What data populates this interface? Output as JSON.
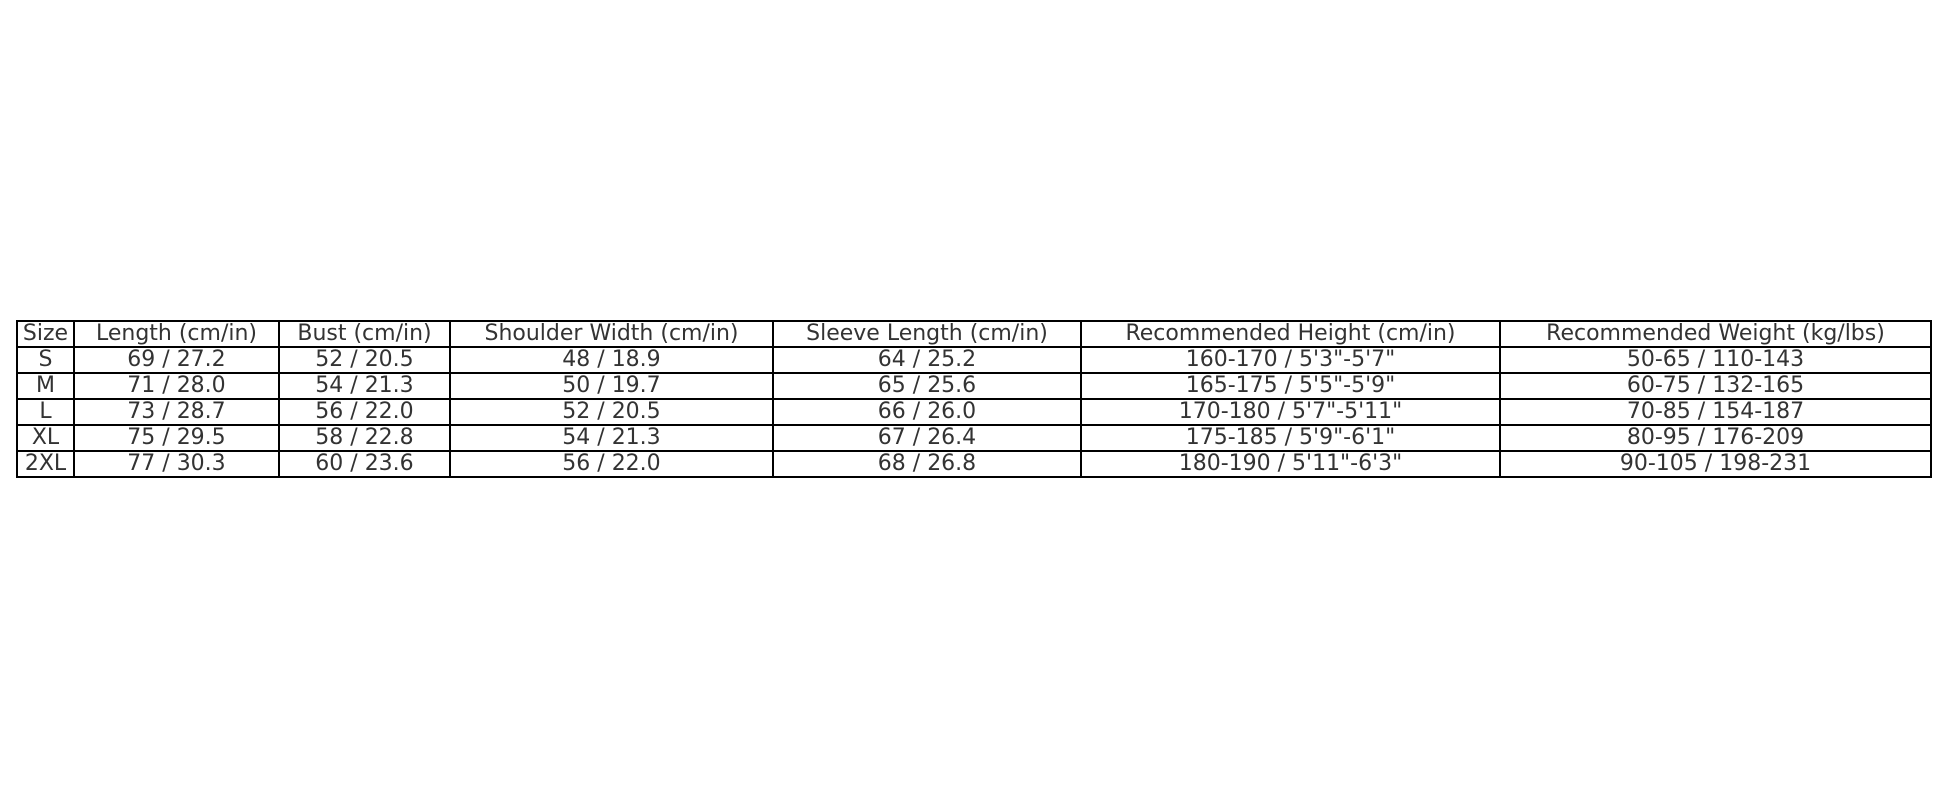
{
  "table": {
    "header": [
      "Size",
      "Length (cm/in)",
      "Bust (cm/in)",
      "Shoulder Width (cm/in)",
      "Sleeve Length (cm/in)",
      "Recommended Height (cm/in)",
      "Recommended Weight (kg/lbs)"
    ],
    "rows": [
      [
        "S",
        "69 / 27.2",
        "52 / 20.5",
        "48 / 18.9",
        "64 / 25.2",
        "160-170 / 5'3\"-5'7\"",
        "50-65 / 110-143"
      ],
      [
        "M",
        "71 / 28.0",
        "54 / 21.3",
        "50 / 19.7",
        "65 / 25.6",
        "165-175 / 5'5\"-5'9\"",
        "60-75 / 132-165"
      ],
      [
        "L",
        "73 / 28.7",
        "56 / 22.0",
        "52 / 20.5",
        "66 / 26.0",
        "170-180 / 5'7\"-5'11\"",
        "70-85 / 154-187"
      ],
      [
        "XL",
        "75 / 29.5",
        "58 / 22.8",
        "54 / 21.3",
        "67 / 26.4",
        "175-185 / 5'9\"-6'1\"",
        "80-95 / 176-209"
      ],
      [
        "2XL",
        "77 / 30.3",
        "60 / 23.6",
        "56 / 22.0",
        "68 / 26.8",
        "180-190 / 5'11\"-6'3\"",
        "90-105 / 198-231"
      ]
    ]
  }
}
